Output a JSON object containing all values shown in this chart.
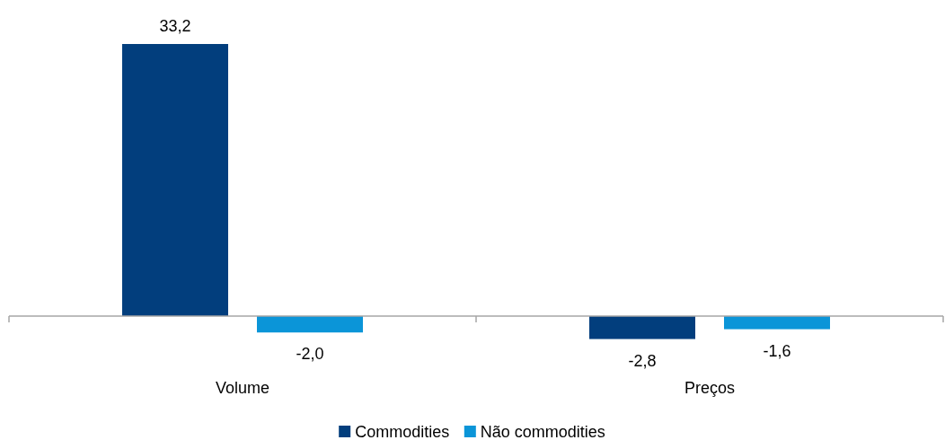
{
  "chart_data": {
    "type": "bar",
    "categories": [
      "Volume",
      "Preços"
    ],
    "series": [
      {
        "name": "Commodities",
        "color": "#023e7d",
        "values": [
          33.2,
          -2.8
        ],
        "value_labels": [
          "33,2",
          "-2,8"
        ]
      },
      {
        "name": "Não commodities",
        "color": "#0b95d8",
        "values": [
          -2.0,
          -1.6
        ],
        "value_labels": [
          "-2,0",
          "-1,6"
        ]
      }
    ],
    "legend": "bottom",
    "tick_labels": "x"
  }
}
